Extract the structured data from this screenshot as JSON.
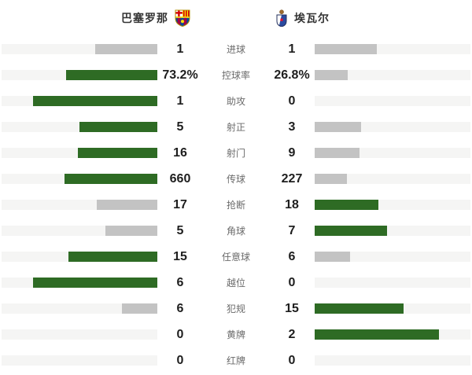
{
  "header": {
    "home": {
      "name": "巴塞罗那"
    },
    "away": {
      "name": "埃瓦尔"
    }
  },
  "chart_data": {
    "type": "bar",
    "subtype": "paired-horizontal-team-comparison",
    "teams": [
      "巴塞罗那",
      "埃瓦尔"
    ],
    "categories": [
      "进球",
      "控球率",
      "助攻",
      "射正",
      "射门",
      "传球",
      "抢断",
      "角球",
      "任意球",
      "越位",
      "犯规",
      "黄牌",
      "红牌"
    ],
    "series": [
      {
        "name": "巴塞罗那",
        "values": [
          "1",
          "73.2%",
          "1",
          "5",
          "16",
          "660",
          "17",
          "5",
          "15",
          "6",
          "6",
          "0",
          "0"
        ]
      },
      {
        "name": "埃瓦尔",
        "values": [
          "1",
          "26.8%",
          "0",
          "3",
          "9",
          "227",
          "18",
          "7",
          "6",
          "0",
          "15",
          "2",
          "0"
        ]
      }
    ],
    "bar_rule": "fill width = 80% * value / (home + away); side with higher value is green, other side gray; tie = gray",
    "colors": {
      "leader": "#2e6b24",
      "trailer": "#c3c3c3",
      "track": "#f5f5f4"
    }
  }
}
